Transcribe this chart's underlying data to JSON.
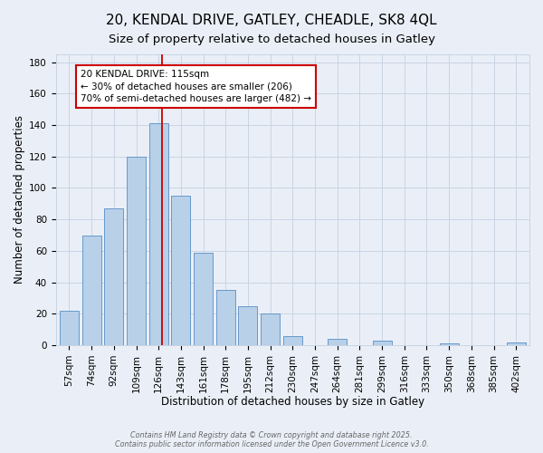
{
  "title": "20, KENDAL DRIVE, GATLEY, CHEADLE, SK8 4QL",
  "subtitle": "Size of property relative to detached houses in Gatley",
  "xlabel": "Distribution of detached houses by size in Gatley",
  "ylabel": "Number of detached properties",
  "bar_labels": [
    "57sqm",
    "74sqm",
    "92sqm",
    "109sqm",
    "126sqm",
    "143sqm",
    "161sqm",
    "178sqm",
    "195sqm",
    "212sqm",
    "230sqm",
    "247sqm",
    "264sqm",
    "281sqm",
    "299sqm",
    "316sqm",
    "333sqm",
    "350sqm",
    "368sqm",
    "385sqm",
    "402sqm"
  ],
  "bar_values": [
    22,
    70,
    87,
    120,
    141,
    95,
    59,
    35,
    25,
    20,
    6,
    0,
    4,
    0,
    3,
    0,
    0,
    1,
    0,
    0,
    2
  ],
  "bar_color": "#b8d0e8",
  "bar_edge_color": "#6699cc",
  "grid_color": "#c8d4e4",
  "background_color": "#eaeff7",
  "annotation_text_line1": "20 KENDAL DRIVE: 115sqm",
  "annotation_text_line2": "← 30% of detached houses are smaller (206)",
  "annotation_text_line3": "70% of semi-detached houses are larger (482) →",
  "vline_x": 4.15,
  "vline_color": "#cc0000",
  "footer_line1": "Contains HM Land Registry data © Crown copyright and database right 2025.",
  "footer_line2": "Contains public sector information licensed under the Open Government Licence v3.0.",
  "ylim": [
    0,
    185
  ],
  "title_fontsize": 11,
  "subtitle_fontsize": 9.5,
  "axis_label_fontsize": 8.5,
  "tick_fontsize": 7.5,
  "annotation_fontsize": 7.5
}
